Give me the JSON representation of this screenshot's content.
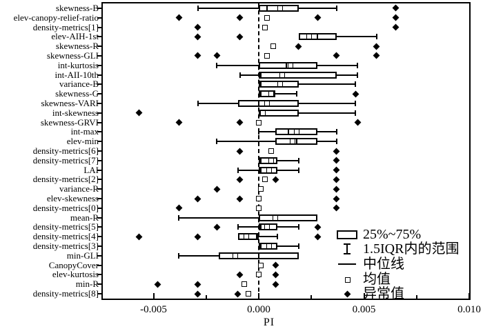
{
  "figure": {
    "background_color": "#ffffff",
    "ink_color": "#000000"
  },
  "chart_data": {
    "type": "boxplot",
    "orientation": "horizontal",
    "title": "",
    "xlabel": "PI",
    "ylabel": "",
    "xlim": [
      -0.0074,
      0.01
    ],
    "grid": false,
    "zero_reference_line": 0,
    "x_tick_values": [
      -0.005,
      0.0,
      0.005,
      0.01
    ],
    "x_tick_labels": [
      "-0.005",
      "0.000",
      "0.005",
      "0.010"
    ],
    "x_minor_tick_values": [
      -0.0025,
      0.0025,
      0.0075
    ],
    "legend": {
      "position": "lower-right-inside",
      "items": [
        {
          "symbol": "box",
          "label": "25%~75%"
        },
        {
          "symbol": "whisker",
          "label": "1.5IQR内的范围"
        },
        {
          "symbol": "median-line",
          "label": "中位线"
        },
        {
          "symbol": "mean-square",
          "label": "均值"
        },
        {
          "symbol": "outlier-diamond",
          "label": "异常值"
        }
      ]
    },
    "rows": [
      {
        "label": "skewness-B",
        "lo": -0.0029,
        "q1": 0.0,
        "med": 0.0004,
        "q3": 0.0019,
        "hi": 0.0037,
        "mean": 0.001,
        "outliers": [
          0.0065
        ]
      },
      {
        "label": "elev-canopy-relief-ratio",
        "lo": 0.0,
        "q1": 0.0,
        "med": 0.0,
        "q3": 0.0,
        "hi": 0.0,
        "mean": 0.0004,
        "outliers": [
          -0.0038,
          -0.0009,
          0.0028,
          0.0065
        ]
      },
      {
        "label": "density-metrics[1]",
        "lo": 0.0,
        "q1": 0.0,
        "med": 0.0,
        "q3": 0.0,
        "hi": 0.0,
        "mean": 0.0003,
        "outliers": [
          -0.0029,
          0.0065
        ]
      },
      {
        "label": "elev-AIH-1st",
        "lo": 0.0019,
        "q1": 0.0019,
        "med": 0.0028,
        "q3": 0.0037,
        "hi": 0.0056,
        "mean": 0.0024,
        "outliers": [
          -0.0029,
          -0.0009
        ]
      },
      {
        "label": "skewness-R",
        "lo": 0.0,
        "q1": 0.0,
        "med": 0.0,
        "q3": 0.0,
        "hi": 0.0,
        "mean": 0.0007,
        "outliers": [
          0.0019,
          0.0056
        ]
      },
      {
        "label": "skewness-GLI",
        "lo": 0.0,
        "q1": 0.0,
        "med": 0.0,
        "q3": 0.0,
        "hi": 0.0,
        "mean": 0.0004,
        "outliers": [
          -0.0029,
          -0.002,
          0.0037,
          0.0056
        ]
      },
      {
        "label": "int-kurtosis",
        "lo": -0.002,
        "q1": 0.0,
        "med": 0.0013,
        "q3": 0.0028,
        "hi": 0.0047,
        "mean": 0.0015,
        "outliers": []
      },
      {
        "label": "int-AII-10th",
        "lo": -0.0009,
        "q1": 0.0,
        "med": 0.0001,
        "q3": 0.0037,
        "hi": 0.0047,
        "mean": 0.0011,
        "outliers": []
      },
      {
        "label": "variance-B",
        "lo": 0.0,
        "q1": 0.0,
        "med": 0.0001,
        "q3": 0.0019,
        "hi": 0.0046,
        "mean": 0.001,
        "outliers": []
      },
      {
        "label": "skewness-G",
        "lo": 0.0,
        "q1": 0.0,
        "med": 0.0001,
        "q3": 0.0008,
        "hi": 0.0018,
        "mean": 0.0006,
        "outliers": [
          0.0046
        ]
      },
      {
        "label": "skewness-VARI",
        "lo": -0.0029,
        "q1": -0.001,
        "med": 0.0,
        "q3": 0.0019,
        "hi": 0.0046,
        "mean": 0.0004,
        "outliers": []
      },
      {
        "label": "int-skewness",
        "lo": 0.0,
        "q1": 0.0,
        "med": 0.0002,
        "q3": 0.0019,
        "hi": 0.0046,
        "mean": 0.0002,
        "outliers": [
          -0.0057
        ]
      },
      {
        "label": "skewness-GRVI",
        "lo": 0.0,
        "q1": 0.0,
        "med": 0.0,
        "q3": 0.0,
        "hi": 0.0,
        "mean": 0.0,
        "outliers": [
          -0.0038,
          -0.0009,
          0.0047
        ]
      },
      {
        "label": "int-max",
        "lo": 0.0,
        "q1": 0.0008,
        "med": 0.0014,
        "q3": 0.0028,
        "hi": 0.0037,
        "mean": 0.0018,
        "outliers": []
      },
      {
        "label": "elev-min",
        "lo": -0.002,
        "q1": 0.0008,
        "med": 0.0018,
        "q3": 0.0028,
        "hi": 0.0037,
        "mean": 0.0016,
        "outliers": []
      },
      {
        "label": "density-metrics[6]",
        "lo": 0.0,
        "q1": 0.0,
        "med": 0.0,
        "q3": 0.0,
        "hi": 0.0,
        "mean": 0.0006,
        "outliers": [
          -0.0009,
          0.0037
        ]
      },
      {
        "label": "density-metrics[7]",
        "lo": 0.0,
        "q1": 0.0,
        "med": 0.0001,
        "q3": 0.0009,
        "hi": 0.0019,
        "mean": 0.0006,
        "outliers": [
          0.0037
        ]
      },
      {
        "label": "LAI",
        "lo": -0.001,
        "q1": 0.0,
        "med": 0.0001,
        "q3": 0.0009,
        "hi": 0.0019,
        "mean": 0.0005,
        "outliers": [
          0.0037
        ]
      },
      {
        "label": "density-metrics[2]",
        "lo": 0.0,
        "q1": 0.0,
        "med": 0.0,
        "q3": 0.0,
        "hi": 0.0,
        "mean": 0.0003,
        "outliers": [
          -0.0009,
          0.0008,
          0.0037
        ]
      },
      {
        "label": "variance-R",
        "lo": 0.0,
        "q1": 0.0,
        "med": 0.0,
        "q3": 0.0,
        "hi": 0.0,
        "mean": 0.0001,
        "outliers": [
          -0.002,
          0.0037
        ]
      },
      {
        "label": "elev-skewness",
        "lo": 0.0,
        "q1": 0.0,
        "med": 0.0,
        "q3": 0.0,
        "hi": 0.0,
        "mean": 0.0,
        "outliers": [
          -0.0029,
          -0.0009,
          0.0037
        ]
      },
      {
        "label": "density-metrics[0]",
        "lo": 0.0,
        "q1": 0.0,
        "med": 0.0,
        "q3": 0.0,
        "hi": 0.0,
        "mean": 0.0,
        "outliers": [
          -0.0038,
          0.0037
        ]
      },
      {
        "label": "mean-R",
        "lo": -0.0038,
        "q1": 0.0,
        "med": 0.0009,
        "q3": 0.0028,
        "hi": 0.0028,
        "mean": 0.0008,
        "outliers": []
      },
      {
        "label": "density-metrics[5]",
        "lo": -0.001,
        "q1": 0.0,
        "med": 0.0001,
        "q3": 0.0009,
        "hi": 0.0019,
        "mean": 0.0004,
        "outliers": [
          -0.002,
          0.0028
        ]
      },
      {
        "label": "density-metrics[4]",
        "lo": -0.001,
        "q1": -0.001,
        "med": -0.0001,
        "q3": 0.0,
        "hi": 0.0009,
        "mean": -0.0006,
        "outliers": [
          -0.0057,
          -0.0029,
          0.0028
        ]
      },
      {
        "label": "density-metrics[3]",
        "lo": 0.0,
        "q1": 0.0,
        "med": 0.0001,
        "q3": 0.0009,
        "hi": 0.0019,
        "mean": 0.0005,
        "outliers": []
      },
      {
        "label": "min-GLI",
        "lo": -0.0038,
        "q1": -0.0019,
        "med": 0.0,
        "q3": 0.0019,
        "hi": 0.0019,
        "mean": -0.0011,
        "outliers": []
      },
      {
        "label": "CanopyCover",
        "lo": 0.0,
        "q1": 0.0,
        "med": 0.0,
        "q3": 0.0,
        "hi": 0.0,
        "mean": 0.0001,
        "outliers": [
          0.0008
        ]
      },
      {
        "label": "elev-kurtosis",
        "lo": 0.0,
        "q1": 0.0,
        "med": 0.0,
        "q3": 0.0,
        "hi": 0.0,
        "mean": 0.0,
        "outliers": [
          -0.0009,
          0.0008
        ]
      },
      {
        "label": "min-R",
        "lo": 0.0,
        "q1": 0.0,
        "med": 0.0,
        "q3": 0.0,
        "hi": 0.0,
        "mean": -0.0007,
        "outliers": [
          -0.0048,
          -0.0029,
          0.0008
        ]
      },
      {
        "label": "density-metrics[8]",
        "lo": 0.0,
        "q1": 0.0,
        "med": 0.0,
        "q3": 0.0,
        "hi": 0.0,
        "mean": -0.0005,
        "outliers": [
          -0.0029,
          -0.001
        ]
      }
    ]
  }
}
